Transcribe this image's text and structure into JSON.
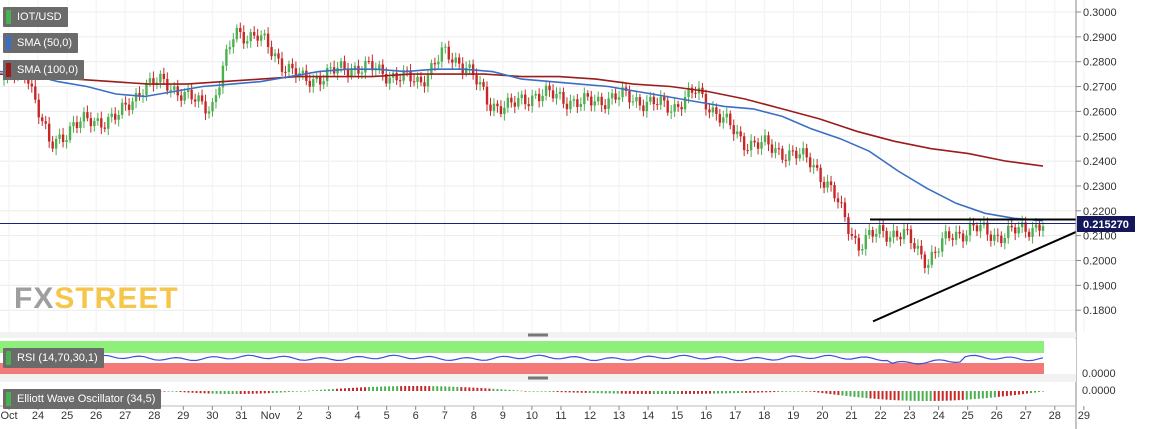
{
  "legend": [
    {
      "label": "IOT/USD",
      "color": "#4caf50"
    },
    {
      "label": "SMA (50,0)",
      "color": "#3b6fc4"
    },
    {
      "label": "SMA (100,0)",
      "color": "#9b1c1c"
    }
  ],
  "watermark": {
    "part1": "FX",
    "part2": "STREET"
  },
  "price_tag": "0.215270",
  "rsi_label": "RSI (14,70,30,1)",
  "ewo_label": "Elliott Wave Oscillator (34,5)",
  "rsi_axis_label": "0.0000",
  "ewo_axis_label": "0.0000",
  "colors": {
    "up": "#4caf50",
    "down": "#c62828",
    "sma50": "#3b6fc4",
    "sma100": "#9b1c1c",
    "rsi_upper": "#8ef07a",
    "rsi_lower": "#f47a7a",
    "rsi_line": "#3b4fd8"
  },
  "chart_data": {
    "type": "candlestick",
    "pair": "IOT/USD",
    "ylim": [
      0.173,
      0.3015
    ],
    "y_ticks": [
      "0.3000",
      "0.2900",
      "0.2800",
      "0.2700",
      "0.2600",
      "0.2500",
      "0.2400",
      "0.2300",
      "0.2200",
      "0.2100",
      "0.2000",
      "0.1900",
      "0.1800"
    ],
    "x_ticks": [
      "Oct",
      "24",
      "25",
      "26",
      "27",
      "28",
      "29",
      "30",
      "31",
      "Nov",
      "2",
      "3",
      "4",
      "5",
      "6",
      "7",
      "8",
      "9",
      "10",
      "11",
      "12",
      "13",
      "14",
      "15",
      "16",
      "17",
      "18",
      "19",
      "20",
      "21",
      "22",
      "23",
      "24",
      "25",
      "26",
      "27",
      "28",
      "29"
    ],
    "current_price": 0.21527,
    "close": [
      0.273,
      0.276,
      0.245,
      0.255,
      0.256,
      0.258,
      0.27,
      0.272,
      0.265,
      0.262,
      0.292,
      0.29,
      0.28,
      0.272,
      0.275,
      0.278,
      0.277,
      0.274,
      0.272,
      0.283,
      0.279,
      0.263,
      0.262,
      0.267,
      0.266,
      0.263,
      0.265,
      0.266,
      0.263,
      0.262,
      0.268,
      0.258,
      0.248,
      0.246,
      0.243,
      0.24,
      0.225,
      0.206,
      0.212,
      0.21,
      0.2,
      0.21,
      0.213,
      0.21,
      0.212,
      0.215
    ],
    "sma50": [
      0.276,
      0.275,
      0.272,
      0.27,
      0.267,
      0.266,
      0.268,
      0.27,
      0.271,
      0.272,
      0.274,
      0.276,
      0.277,
      0.277,
      0.276,
      0.277,
      0.277,
      0.276,
      0.273,
      0.272,
      0.271,
      0.27,
      0.268,
      0.266,
      0.264,
      0.262,
      0.261,
      0.258,
      0.253,
      0.249,
      0.244,
      0.236,
      0.229,
      0.223,
      0.219,
      0.217,
      0.216
    ],
    "sma100": [
      0.275,
      0.274,
      0.273,
      0.272,
      0.271,
      0.271,
      0.272,
      0.273,
      0.274,
      0.274,
      0.274,
      0.275,
      0.275,
      0.275,
      0.274,
      0.274,
      0.273,
      0.271,
      0.27,
      0.268,
      0.265,
      0.261,
      0.257,
      0.252,
      0.248,
      0.245,
      0.243,
      0.24,
      0.238
    ],
    "resistance": 0.2165,
    "support_line": {
      "from": 0.1755,
      "to": 0.2115
    },
    "indicators": [
      "RSI (14,70,30,1)",
      "Elliott Wave Oscillator (34,5)"
    ]
  }
}
